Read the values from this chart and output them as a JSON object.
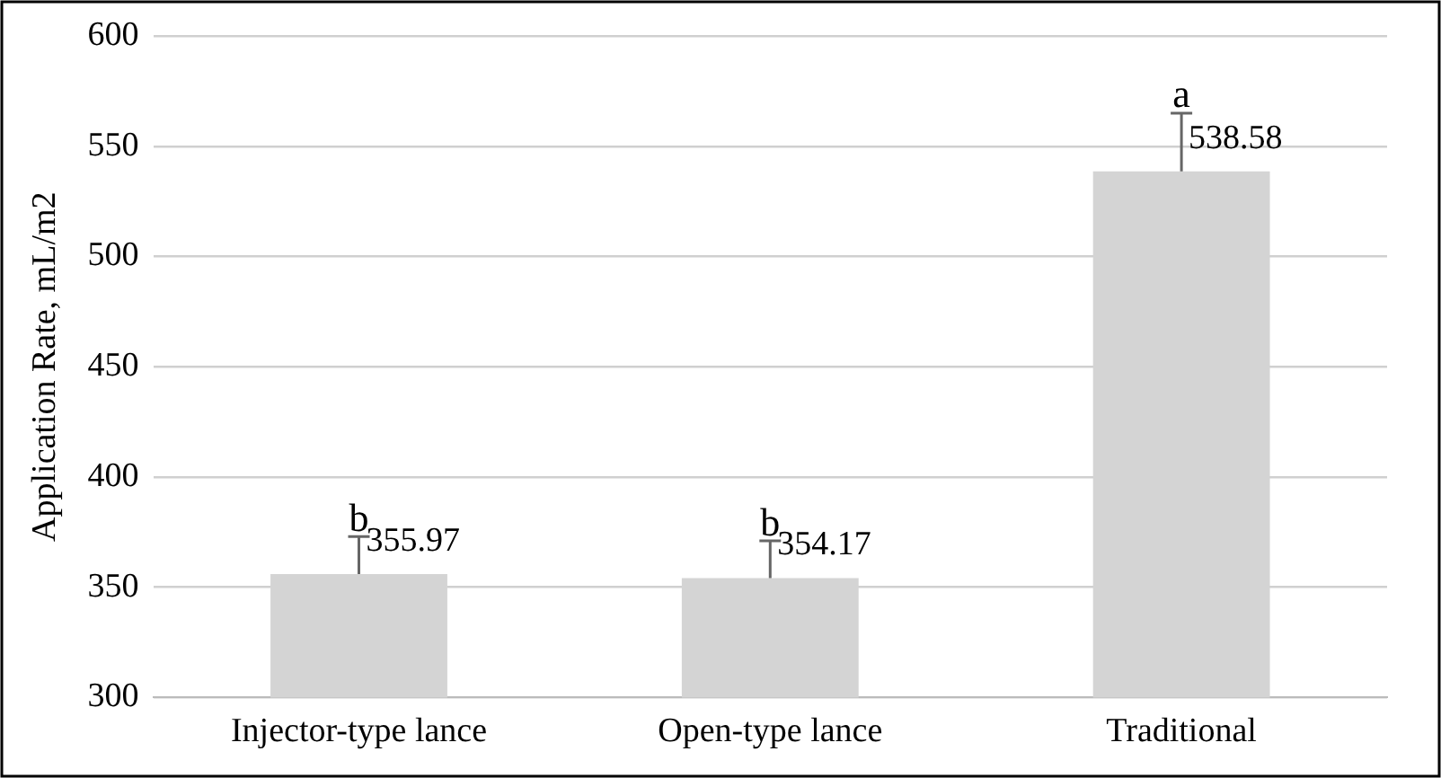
{
  "chart_data": {
    "type": "bar",
    "categories": [
      "Injector-type lance",
      "Open-type lance",
      "Traditional"
    ],
    "values": [
      355.97,
      354.17,
      538.58
    ],
    "color": "#d4d4d4",
    "errors": [
      [
        355.97,
        373
      ],
      [
        354.17,
        371
      ],
      [
        538.58,
        565
      ]
    ],
    "ylabel": "Application Rate, mL/m2",
    "ylim": [
      300,
      600
    ],
    "yticks": [
      300,
      350,
      400,
      450,
      500,
      550,
      600
    ],
    "grid": "y",
    "legend": false,
    "data_labels": true,
    "annotations": [
      {
        "text": "b",
        "x": "Injector-type lance",
        "y": 373
      },
      {
        "text": "b",
        "x": "Open-type lance",
        "y": 371
      },
      {
        "text": "a",
        "x": "Traditional",
        "y": 565
      }
    ]
  }
}
